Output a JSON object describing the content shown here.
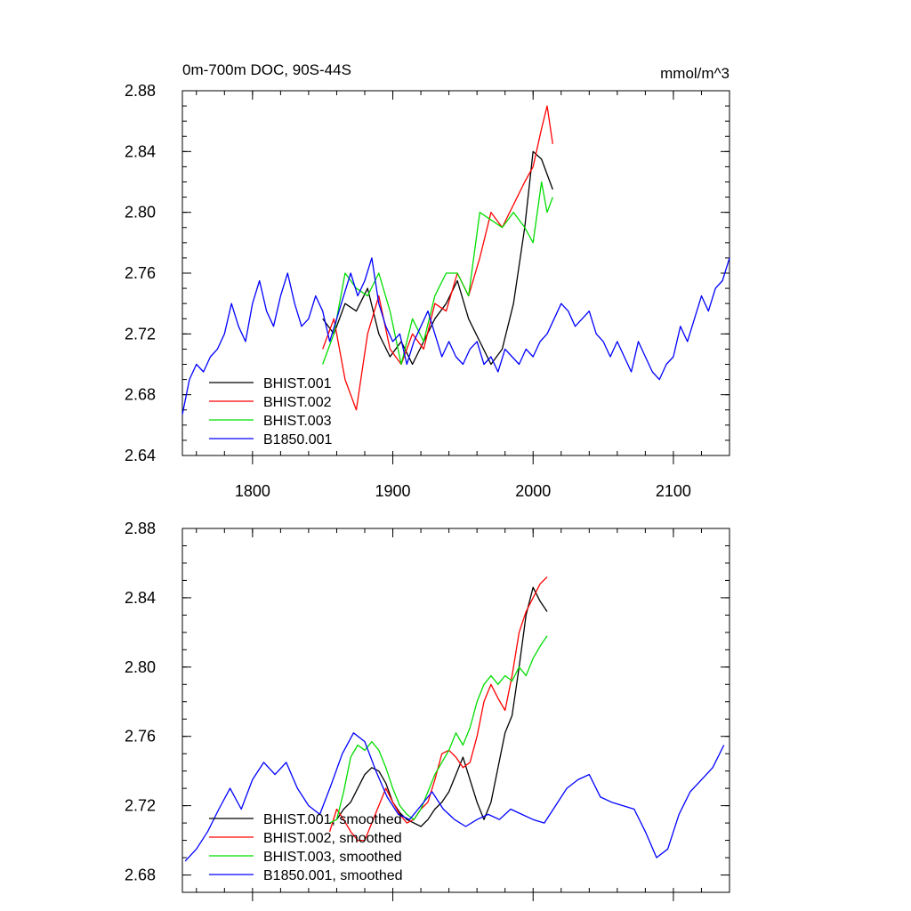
{
  "chart_data": [
    {
      "type": "line",
      "title": "0m-700m DOC, 90S-44S",
      "units": "mmol/m^3",
      "xlim": [
        1750,
        2140
      ],
      "ylim": [
        2.64,
        2.88
      ],
      "xticks": [
        1800,
        1900,
        2000,
        2100
      ],
      "xtick_labels": [
        "1800",
        "1900",
        "2000",
        "2100"
      ],
      "yticks": [
        2.64,
        2.68,
        2.72,
        2.76,
        2.8,
        2.84,
        2.88
      ],
      "ytick_labels": [
        "2.64",
        "2.68",
        "2.72",
        "2.76",
        "2.80",
        "2.84",
        "2.88"
      ],
      "legend_position": "bottom-left",
      "series": [
        {
          "name": "BHIST.001",
          "color": "#000000",
          "x": [
            1850,
            1858,
            1866,
            1874,
            1882,
            1890,
            1898,
            1906,
            1914,
            1922,
            1930,
            1938,
            1946,
            1954,
            1962,
            1970,
            1978,
            1986,
            1994,
            2000,
            2006,
            2010,
            2014
          ],
          "y": [
            2.73,
            2.72,
            2.74,
            2.735,
            2.75,
            2.72,
            2.705,
            2.715,
            2.7,
            2.715,
            2.73,
            2.74,
            2.755,
            2.73,
            2.715,
            2.7,
            2.71,
            2.74,
            2.79,
            2.84,
            2.835,
            2.825,
            2.815
          ]
        },
        {
          "name": "BHIST.002",
          "color": "#ff0000",
          "x": [
            1850,
            1858,
            1866,
            1874,
            1882,
            1890,
            1898,
            1906,
            1914,
            1922,
            1930,
            1938,
            1946,
            1954,
            1962,
            1970,
            1978,
            1986,
            1994,
            2000,
            2006,
            2010,
            2014
          ],
          "y": [
            2.71,
            2.73,
            2.69,
            2.67,
            2.72,
            2.745,
            2.71,
            2.7,
            2.72,
            2.71,
            2.74,
            2.735,
            2.76,
            2.745,
            2.77,
            2.8,
            2.79,
            2.805,
            2.82,
            2.83,
            2.855,
            2.87,
            2.845
          ]
        },
        {
          "name": "BHIST.003",
          "color": "#00dd00",
          "x": [
            1850,
            1858,
            1866,
            1874,
            1882,
            1890,
            1898,
            1906,
            1914,
            1922,
            1930,
            1938,
            1946,
            1954,
            1962,
            1970,
            1978,
            1986,
            1994,
            2000,
            2006,
            2010,
            2014
          ],
          "y": [
            2.7,
            2.72,
            2.76,
            2.75,
            2.745,
            2.76,
            2.735,
            2.7,
            2.73,
            2.715,
            2.745,
            2.76,
            2.76,
            2.745,
            2.8,
            2.795,
            2.79,
            2.8,
            2.79,
            2.78,
            2.82,
            2.8,
            2.81
          ]
        },
        {
          "name": "B1850.001",
          "color": "#0000ff",
          "x": [
            1750,
            1755,
            1760,
            1765,
            1770,
            1775,
            1780,
            1785,
            1790,
            1795,
            1800,
            1805,
            1810,
            1815,
            1820,
            1825,
            1830,
            1835,
            1840,
            1845,
            1850,
            1855,
            1860,
            1865,
            1870,
            1875,
            1880,
            1885,
            1890,
            1895,
            1900,
            1905,
            1910,
            1915,
            1920,
            1925,
            1930,
            1935,
            1940,
            1945,
            1950,
            1955,
            1960,
            1965,
            1970,
            1975,
            1980,
            1985,
            1990,
            1995,
            2000,
            2005,
            2010,
            2015,
            2020,
            2025,
            2030,
            2035,
            2040,
            2045,
            2050,
            2055,
            2060,
            2065,
            2070,
            2075,
            2080,
            2085,
            2090,
            2095,
            2100,
            2105,
            2110,
            2115,
            2120,
            2125,
            2130,
            2135,
            2140
          ],
          "y": [
            2.667,
            2.69,
            2.7,
            2.695,
            2.705,
            2.71,
            2.72,
            2.74,
            2.725,
            2.715,
            2.74,
            2.755,
            2.735,
            2.725,
            2.745,
            2.76,
            2.74,
            2.725,
            2.73,
            2.745,
            2.735,
            2.715,
            2.73,
            2.745,
            2.76,
            2.745,
            2.755,
            2.77,
            2.74,
            2.725,
            2.715,
            2.72,
            2.7,
            2.715,
            2.725,
            2.735,
            2.72,
            2.705,
            2.715,
            2.705,
            2.7,
            2.71,
            2.715,
            2.7,
            2.705,
            2.695,
            2.71,
            2.705,
            2.7,
            2.71,
            2.705,
            2.715,
            2.72,
            2.73,
            2.74,
            2.735,
            2.725,
            2.73,
            2.735,
            2.72,
            2.715,
            2.705,
            2.715,
            2.705,
            2.695,
            2.715,
            2.705,
            2.695,
            2.69,
            2.7,
            2.705,
            2.725,
            2.715,
            2.73,
            2.745,
            2.735,
            2.75,
            2.755,
            2.77
          ]
        }
      ]
    },
    {
      "type": "line",
      "xlim": [
        1750,
        2140
      ],
      "ylim": [
        2.67,
        2.88
      ],
      "xticks": [
        1800,
        1900,
        2000,
        2100
      ],
      "yticks": [
        2.68,
        2.72,
        2.76,
        2.8,
        2.84,
        2.88
      ],
      "ytick_labels": [
        "2.68",
        "2.72",
        "2.76",
        "2.80",
        "2.84",
        "2.88"
      ],
      "legend_position": "bottom-left",
      "series": [
        {
          "name": "BHIST.001, smoothed",
          "color": "#000000",
          "x": [
            1860,
            1865,
            1870,
            1875,
            1880,
            1885,
            1890,
            1895,
            1900,
            1905,
            1910,
            1915,
            1920,
            1925,
            1930,
            1935,
            1940,
            1945,
            1950,
            1955,
            1960,
            1965,
            1970,
            1975,
            1980,
            1985,
            1990,
            1995,
            2000,
            2005,
            2010
          ],
          "y": [
            2.712,
            2.718,
            2.722,
            2.73,
            2.738,
            2.742,
            2.74,
            2.733,
            2.722,
            2.716,
            2.712,
            2.71,
            2.708,
            2.712,
            2.718,
            2.722,
            2.728,
            2.738,
            2.748,
            2.735,
            2.722,
            2.712,
            2.722,
            2.742,
            2.762,
            2.772,
            2.8,
            2.83,
            2.846,
            2.838,
            2.832
          ]
        },
        {
          "name": "BHIST.002, smoothed",
          "color": "#ff0000",
          "x": [
            1855,
            1860,
            1865,
            1870,
            1875,
            1880,
            1885,
            1890,
            1895,
            1900,
            1905,
            1910,
            1915,
            1920,
            1925,
            1930,
            1935,
            1940,
            1945,
            1950,
            1955,
            1960,
            1965,
            1970,
            1975,
            1980,
            1985,
            1990,
            1995,
            2000,
            2005,
            2010
          ],
          "y": [
            2.705,
            2.718,
            2.712,
            2.705,
            2.7,
            2.7,
            2.71,
            2.72,
            2.73,
            2.722,
            2.715,
            2.71,
            2.712,
            2.718,
            2.722,
            2.735,
            2.75,
            2.752,
            2.748,
            2.742,
            2.745,
            2.76,
            2.78,
            2.79,
            2.782,
            2.775,
            2.795,
            2.82,
            2.832,
            2.84,
            2.848,
            2.852
          ]
        },
        {
          "name": "BHIST.003, smoothed",
          "color": "#00dd00",
          "x": [
            1855,
            1860,
            1865,
            1870,
            1875,
            1880,
            1885,
            1890,
            1895,
            1900,
            1905,
            1910,
            1915,
            1920,
            1925,
            1930,
            1935,
            1940,
            1945,
            1950,
            1955,
            1960,
            1965,
            1970,
            1975,
            1980,
            1985,
            1990,
            1995,
            2000,
            2005,
            2010
          ],
          "y": [
            2.71,
            2.712,
            2.728,
            2.748,
            2.755,
            2.752,
            2.757,
            2.752,
            2.742,
            2.73,
            2.72,
            2.715,
            2.712,
            2.718,
            2.728,
            2.738,
            2.745,
            2.752,
            2.762,
            2.755,
            2.765,
            2.78,
            2.79,
            2.795,
            2.79,
            2.795,
            2.792,
            2.8,
            2.795,
            2.805,
            2.812,
            2.818
          ]
        },
        {
          "name": "B1850.001, smoothed",
          "color": "#0000ff",
          "x": [
            1752,
            1760,
            1768,
            1776,
            1784,
            1792,
            1800,
            1808,
            1816,
            1824,
            1832,
            1840,
            1848,
            1856,
            1864,
            1872,
            1880,
            1888,
            1896,
            1904,
            1912,
            1920,
            1928,
            1936,
            1944,
            1952,
            1960,
            1968,
            1976,
            1984,
            1992,
            2000,
            2008,
            2016,
            2024,
            2032,
            2040,
            2048,
            2056,
            2064,
            2072,
            2080,
            2088,
            2096,
            2104,
            2112,
            2120,
            2128,
            2136
          ],
          "y": [
            2.688,
            2.695,
            2.705,
            2.718,
            2.73,
            2.718,
            2.735,
            2.745,
            2.738,
            2.745,
            2.73,
            2.72,
            2.715,
            2.732,
            2.75,
            2.762,
            2.757,
            2.74,
            2.725,
            2.715,
            2.712,
            2.72,
            2.728,
            2.718,
            2.712,
            2.708,
            2.712,
            2.715,
            2.712,
            2.718,
            2.715,
            2.712,
            2.71,
            2.72,
            2.73,
            2.735,
            2.738,
            2.725,
            2.722,
            2.72,
            2.718,
            2.705,
            2.69,
            2.695,
            2.715,
            2.728,
            2.735,
            2.742,
            2.755
          ]
        }
      ]
    }
  ]
}
